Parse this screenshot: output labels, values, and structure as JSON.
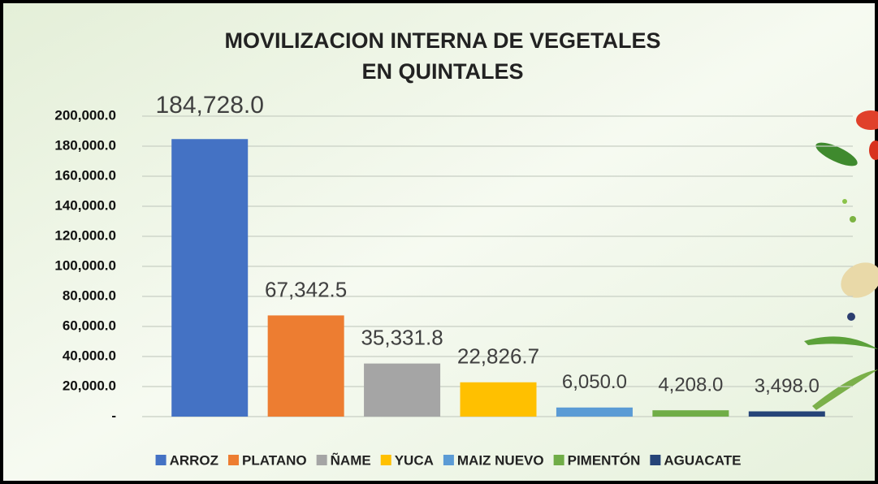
{
  "chart_data": {
    "type": "bar",
    "title": [
      "MOVILIZACION INTERNA DE VEGETALES",
      "EN QUINTALES"
    ],
    "categories": [
      "ARROZ",
      "PLATANO",
      "ÑAME",
      "YUCA",
      "MAIZ NUEVO",
      "PIMENTÓN",
      "AGUACATE"
    ],
    "values": [
      184728.0,
      67342.5,
      35331.8,
      22826.7,
      6050.0,
      4208.0,
      3498.0
    ],
    "value_labels": [
      "184,728.0",
      "67,342.5",
      "35,331.8",
      "22,826.7",
      "6,050.0",
      "4,208.0",
      "3,498.0"
    ],
    "colors": [
      "#4472c4",
      "#ed7d31",
      "#a5a5a5",
      "#ffc000",
      "#5b9bd5",
      "#70ad47",
      "#264478"
    ],
    "ylim": [
      0,
      200000
    ],
    "yticks": [
      {
        "value": 0,
        "label": "-"
      },
      {
        "value": 20000,
        "label": "20,000.0"
      },
      {
        "value": 40000,
        "label": "40,000.0"
      },
      {
        "value": 60000,
        "label": "60,000.0"
      },
      {
        "value": 80000,
        "label": "80,000.0"
      },
      {
        "value": 100000,
        "label": "100,000.0"
      },
      {
        "value": 120000,
        "label": "120,000.0"
      },
      {
        "value": 140000,
        "label": "140,000.0"
      },
      {
        "value": 160000,
        "label": "160,000.0"
      },
      {
        "value": 180000,
        "label": "180,000.0"
      },
      {
        "value": 200000,
        "label": "200,000.0"
      }
    ],
    "grid": true,
    "legend": "bottom"
  }
}
